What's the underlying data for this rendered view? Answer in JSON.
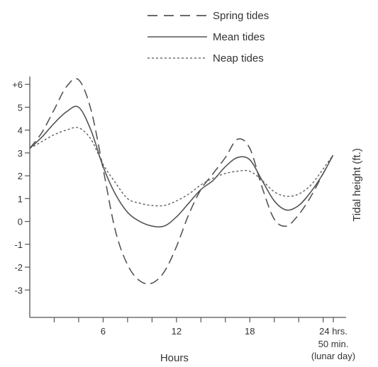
{
  "chart_data": {
    "type": "line",
    "xlabel": "Hours",
    "ylabel": "Tidal height (ft.)",
    "xlim": [
      0,
      24.83
    ],
    "ylim": [
      -4.2,
      6.5
    ],
    "x_ticks": [
      {
        "value": 6,
        "label": "6"
      },
      {
        "value": 12,
        "label": "12"
      },
      {
        "value": 18,
        "label": "18"
      },
      {
        "value": 24.83,
        "label": "24 hrs."
      }
    ],
    "x_end_label_lines": [
      "50 min.",
      "(lunar day)"
    ],
    "y_ticks": [
      {
        "value": 6,
        "label": "+6"
      },
      {
        "value": 5,
        "label": "5"
      },
      {
        "value": 4,
        "label": "4"
      },
      {
        "value": 3,
        "label": "3"
      },
      {
        "value": 2,
        "label": "2"
      },
      {
        "value": 1,
        "label": "1"
      },
      {
        "value": 0,
        "label": "0"
      },
      {
        "value": -1,
        "label": "-1"
      },
      {
        "value": -2,
        "label": "-2"
      },
      {
        "value": -3,
        "label": "-3"
      }
    ],
    "series": [
      {
        "name": "Spring tides",
        "style": "dashed",
        "x": [
          0,
          1,
          2,
          3,
          4,
          5,
          6,
          7,
          8,
          9,
          10,
          11,
          12,
          13,
          14,
          15,
          16,
          17,
          18,
          19,
          20,
          21,
          22,
          23,
          24,
          24.8
        ],
        "y": [
          3.2,
          3.9,
          4.9,
          5.9,
          6.2,
          4.9,
          2.3,
          -0.4,
          -1.9,
          -2.6,
          -2.7,
          -2.2,
          -1.1,
          0.3,
          1.4,
          2.1,
          2.8,
          3.6,
          3.2,
          1.5,
          0.1,
          -0.2,
          0.3,
          1.1,
          2.1,
          2.9
        ]
      },
      {
        "name": "Mean tides",
        "style": "solid",
        "x": [
          0,
          1,
          2,
          3,
          4,
          5,
          6,
          7,
          8,
          9,
          10,
          11,
          12,
          13,
          14,
          15,
          16,
          17,
          18,
          19,
          20,
          21,
          22,
          23,
          24,
          24.8
        ],
        "y": [
          3.2,
          3.7,
          4.3,
          4.8,
          5.0,
          4.0,
          2.4,
          1.2,
          0.4,
          0.0,
          -0.2,
          -0.2,
          0.2,
          0.8,
          1.4,
          1.8,
          2.4,
          2.8,
          2.7,
          1.8,
          0.9,
          0.5,
          0.7,
          1.3,
          2.1,
          2.9
        ]
      },
      {
        "name": "Neap tides",
        "style": "dotted",
        "x": [
          0,
          1,
          2,
          3,
          4,
          5,
          6,
          7,
          8,
          9,
          10,
          11,
          12,
          13,
          14,
          15,
          16,
          17,
          18,
          19,
          20,
          21,
          22,
          23,
          24,
          24.8
        ],
        "y": [
          3.2,
          3.5,
          3.8,
          4.0,
          4.1,
          3.6,
          2.5,
          1.7,
          1.0,
          0.8,
          0.7,
          0.7,
          0.9,
          1.2,
          1.6,
          1.9,
          2.1,
          2.2,
          2.2,
          1.8,
          1.3,
          1.1,
          1.2,
          1.6,
          2.3,
          2.9
        ]
      }
    ],
    "legend_position": "top"
  }
}
